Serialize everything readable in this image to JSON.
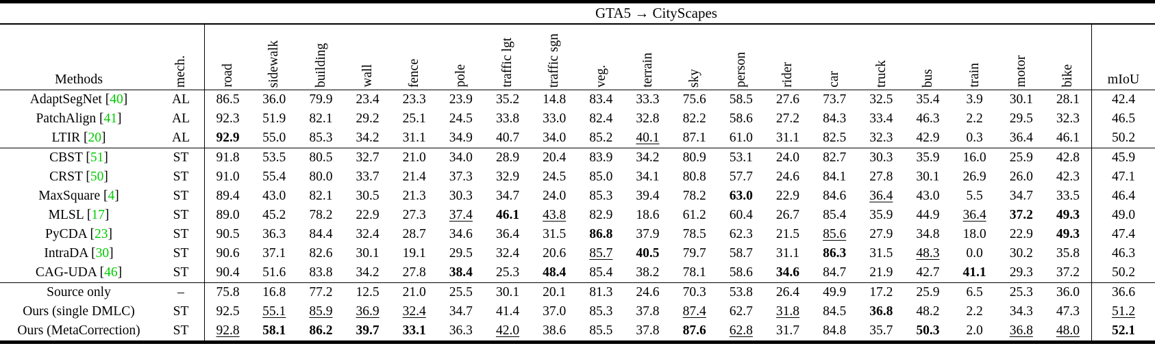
{
  "title": "GTA5 → CityScapes",
  "colors": {
    "citation_green": "#00CC00"
  },
  "table": {
    "headers": {
      "methods": "Methods",
      "mech": "mech.",
      "miou": "mIoU",
      "classes": [
        "road",
        "sidewalk",
        "building",
        "wall",
        "fence",
        "pole",
        "traffic lgt",
        "traffic sgn",
        "veg.",
        "terrain",
        "sky",
        "person",
        "rider",
        "car",
        "truck",
        "bus",
        "train",
        "motor",
        "bike"
      ]
    },
    "rows": [
      {
        "method": "AdaptSegNet",
        "cite": "40",
        "mech": "AL",
        "rule_after": false,
        "cells": [
          "86.5",
          "36.0",
          "79.9",
          "23.4",
          "23.3",
          "23.9",
          "35.2",
          "14.8",
          "83.4",
          "33.3",
          "75.6",
          "58.5",
          "27.6",
          "73.7",
          "32.5",
          "35.4",
          "3.9",
          "30.1",
          "28.1"
        ],
        "miou": "42.4"
      },
      {
        "method": "PatchAlign",
        "cite": "41",
        "mech": "AL",
        "rule_after": false,
        "cells": [
          "92.3",
          "51.9",
          "82.1",
          "29.2",
          "25.1",
          "24.5",
          "33.8",
          "33.0",
          "82.4",
          "32.8",
          "82.2",
          "58.6",
          "27.2",
          "84.3",
          "33.4",
          "46.3",
          "2.2",
          "29.5",
          "32.3"
        ],
        "miou": "46.5"
      },
      {
        "method": "LTIR",
        "cite": "20",
        "mech": "AL",
        "rule_after": true,
        "cells": [
          "92.9|b",
          "55.0",
          "85.3",
          "34.2",
          "31.1",
          "34.9",
          "40.7",
          "34.0",
          "85.2",
          "40.1|u",
          "87.1",
          "61.0",
          "31.1",
          "82.5",
          "32.3",
          "42.9",
          "0.3",
          "36.4",
          "46.1"
        ],
        "miou": "50.2"
      },
      {
        "method": "CBST",
        "cite": "51",
        "mech": "ST",
        "rule_after": false,
        "cells": [
          "91.8",
          "53.5",
          "80.5",
          "32.7",
          "21.0",
          "34.0",
          "28.9",
          "20.4",
          "83.9",
          "34.2",
          "80.9",
          "53.1",
          "24.0",
          "82.7",
          "30.3",
          "35.9",
          "16.0",
          "25.9",
          "42.8"
        ],
        "miou": "45.9"
      },
      {
        "method": "CRST",
        "cite": "50",
        "mech": "ST",
        "rule_after": false,
        "cells": [
          "91.0",
          "55.4",
          "80.0",
          "33.7",
          "21.4",
          "37.3",
          "32.9",
          "24.5",
          "85.0",
          "34.1",
          "80.8",
          "57.7",
          "24.6",
          "84.1",
          "27.8",
          "30.1",
          "26.9",
          "26.0",
          "42.3"
        ],
        "miou": "47.1"
      },
      {
        "method": "MaxSquare",
        "cite": "4",
        "mech": "ST",
        "rule_after": false,
        "cells": [
          "89.4",
          "43.0",
          "82.1",
          "30.5",
          "21.3",
          "30.3",
          "34.7",
          "24.0",
          "85.3",
          "39.4",
          "78.2",
          "63.0|b",
          "22.9",
          "84.6",
          "36.4|u",
          "43.0",
          "5.5",
          "34.7",
          "33.5"
        ],
        "miou": "46.4"
      },
      {
        "method": "MLSL",
        "cite": "17",
        "mech": "ST",
        "rule_after": false,
        "cells": [
          "89.0",
          "45.2",
          "78.2",
          "22.9",
          "27.3",
          "37.4|u",
          "46.1|b",
          "43.8|u",
          "82.9",
          "18.6",
          "61.2",
          "60.4",
          "26.7",
          "85.4",
          "35.9",
          "44.9",
          "36.4|u",
          "37.2|b",
          "49.3|b"
        ],
        "miou": "49.0"
      },
      {
        "method": "PyCDA",
        "cite": "23",
        "mech": "ST",
        "rule_after": false,
        "cells": [
          "90.5",
          "36.3",
          "84.4",
          "32.4",
          "28.7",
          "34.6",
          "36.4",
          "31.5",
          "86.8|b",
          "37.9",
          "78.5",
          "62.3",
          "21.5",
          "85.6|u",
          "27.9",
          "34.8",
          "18.0",
          "22.9",
          "49.3|b"
        ],
        "miou": "47.4"
      },
      {
        "method": "IntraDA",
        "cite": "30",
        "mech": "ST",
        "rule_after": false,
        "cells": [
          "90.6",
          "37.1",
          "82.6",
          "30.1",
          "19.1",
          "29.5",
          "32.4",
          "20.6",
          "85.7|u",
          "40.5|b",
          "79.7",
          "58.7",
          "31.1",
          "86.3|b",
          "31.5",
          "48.3|u",
          "0.0",
          "30.2",
          "35.8"
        ],
        "miou": "46.3"
      },
      {
        "method": "CAG-UDA",
        "cite": "46",
        "mech": "ST",
        "rule_after": true,
        "cells": [
          "90.4",
          "51.6",
          "83.8",
          "34.2",
          "27.8",
          "38.4|b",
          "25.3",
          "48.4|b",
          "85.4",
          "38.2",
          "78.1",
          "58.6",
          "34.6|b",
          "84.7",
          "21.9",
          "42.7",
          "41.1|b",
          "29.3",
          "37.2"
        ],
        "miou": "50.2"
      },
      {
        "method": "Source only",
        "cite": null,
        "mech": "–",
        "rule_after": false,
        "cells": [
          "75.8",
          "16.8",
          "77.2",
          "12.5",
          "21.0",
          "25.5",
          "30.1",
          "20.1",
          "81.3",
          "24.6",
          "70.3",
          "53.8",
          "26.4",
          "49.9",
          "17.2",
          "25.9",
          "6.5",
          "25.3",
          "36.0"
        ],
        "miou": "36.6"
      },
      {
        "method": "Ours (single DMLC)",
        "cite": null,
        "mech": "ST",
        "rule_after": false,
        "cells": [
          "92.5",
          "55.1|u",
          "85.9|u",
          "36.9|u",
          "32.4|u",
          "34.7",
          "41.4",
          "37.0",
          "85.3",
          "37.8",
          "87.4|u",
          "62.7",
          "31.8|u",
          "84.5",
          "36.8|b",
          "48.2",
          "2.2",
          "34.3",
          "47.3"
        ],
        "miou": "51.2|u"
      },
      {
        "method": "Ours (MetaCorrection)",
        "cite": null,
        "mech": "ST",
        "rule_after": false,
        "cells": [
          "92.8|u",
          "58.1|b",
          "86.2|b",
          "39.7|b",
          "33.1|b",
          "36.3",
          "42.0|u",
          "38.6",
          "85.5",
          "37.8",
          "87.6|b",
          "62.8|u",
          "31.7",
          "84.8",
          "35.7",
          "50.3|b",
          "2.0",
          "36.8|u",
          "48.0|u"
        ],
        "miou": "52.1|b"
      }
    ]
  }
}
